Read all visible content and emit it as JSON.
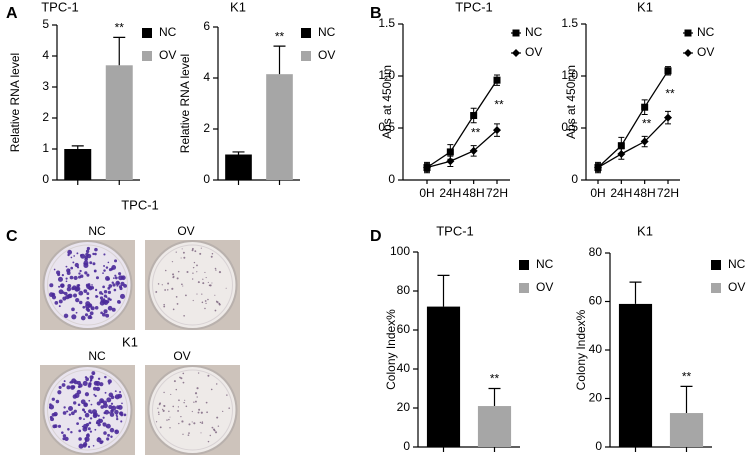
{
  "panel_labels": [
    "A",
    "B",
    "C",
    "D"
  ],
  "colony_images": {
    "title": "TPC-1",
    "labels": [
      "NC",
      "OV"
    ],
    "title_2": "K1",
    "labels_2": [
      "NC",
      "OV"
    ]
  },
  "chart_data": [
    {
      "type": "bar",
      "title": "TPC-1",
      "y_label": "Relative RNA level",
      "series": [
        {
          "name": "NC",
          "color": "#000000",
          "values": [
            1.0
          ],
          "errors": [
            0.1
          ]
        },
        {
          "name": "OV",
          "color": "#a6a6a6",
          "values": [
            3.7
          ],
          "errors": [
            0.9
          ]
        }
      ],
      "ylim": [
        0,
        5
      ],
      "yticks": [
        0,
        1,
        2,
        3,
        4,
        5
      ],
      "annotations": [
        "**"
      ]
    },
    {
      "type": "bar",
      "title": "K1",
      "y_label": "Relative RNA level",
      "series": [
        {
          "name": "NC",
          "color": "#000000",
          "values": [
            1.0
          ],
          "errors": [
            0.1
          ]
        },
        {
          "name": "OV",
          "color": "#a6a6a6",
          "values": [
            4.15
          ],
          "errors": [
            1.1
          ]
        }
      ],
      "ylim": [
        0,
        6
      ],
      "yticks": [
        0,
        2,
        4,
        6
      ],
      "annotations": [
        "**"
      ]
    },
    {
      "type": "line",
      "title": "TPC-1",
      "y_label": "Abs at 450nm",
      "categories": [
        "0H",
        "24H",
        "48H",
        "72H"
      ],
      "series": [
        {
          "name": "NC",
          "color": "#000000",
          "marker": "square",
          "values": [
            0.12,
            0.27,
            0.62,
            0.96
          ],
          "errors": [
            0.05,
            0.07,
            0.07,
            0.05
          ]
        },
        {
          "name": "OV",
          "color": "#000000",
          "marker": "diamond",
          "values": [
            0.12,
            0.18,
            0.28,
            0.48
          ],
          "errors": [
            0.04,
            0.05,
            0.05,
            0.06
          ]
        }
      ],
      "ylim": [
        0,
        1.5
      ],
      "yticks": [
        0,
        0.5,
        {
          "value": 1.0,
          "label": "1.0"
        },
        1.5
      ],
      "annotations": [
        "**",
        "**"
      ]
    },
    {
      "type": "line",
      "title": "K1",
      "y_label": "Abs at 450nm",
      "categories": [
        "0H",
        "24H",
        "48H",
        "72H"
      ],
      "series": [
        {
          "name": "NC",
          "color": "#000000",
          "marker": "square",
          "values": [
            0.12,
            0.33,
            0.7,
            1.05
          ],
          "errors": [
            0.05,
            0.08,
            0.07,
            0.04
          ]
        },
        {
          "name": "OV",
          "color": "#000000",
          "marker": "diamond",
          "values": [
            0.12,
            0.25,
            0.37,
            0.6
          ],
          "errors": [
            0.04,
            0.05,
            0.05,
            0.06
          ]
        }
      ],
      "ylim": [
        0,
        1.5
      ],
      "yticks": [
        0,
        0.5,
        {
          "value": 1.0,
          "label": "1.0"
        },
        1.5
      ],
      "annotations": [
        "**",
        "**"
      ]
    },
    {
      "type": "bar",
      "title": "TPC-1",
      "y_label": "Colony Index%",
      "series": [
        {
          "name": "NC",
          "color": "#000000",
          "values": [
            72
          ],
          "errors": [
            16
          ]
        },
        {
          "name": "OV",
          "color": "#a6a6a6",
          "values": [
            21
          ],
          "errors": [
            9
          ]
        }
      ],
      "ylim": [
        0,
        100
      ],
      "yticks": [
        0,
        20,
        40,
        60,
        80,
        100
      ],
      "annotations": [
        "**"
      ]
    },
    {
      "type": "bar",
      "title": "K1",
      "y_label": "Colony Index%",
      "series": [
        {
          "name": "NC",
          "color": "#000000",
          "values": [
            59
          ],
          "errors": [
            9
          ]
        },
        {
          "name": "OV",
          "color": "#a6a6a6",
          "values": [
            14
          ],
          "errors": [
            11
          ]
        }
      ],
      "ylim": [
        0,
        80
      ],
      "yticks": [
        0,
        20,
        40,
        60,
        80
      ],
      "annotations": [
        "**"
      ]
    }
  ]
}
